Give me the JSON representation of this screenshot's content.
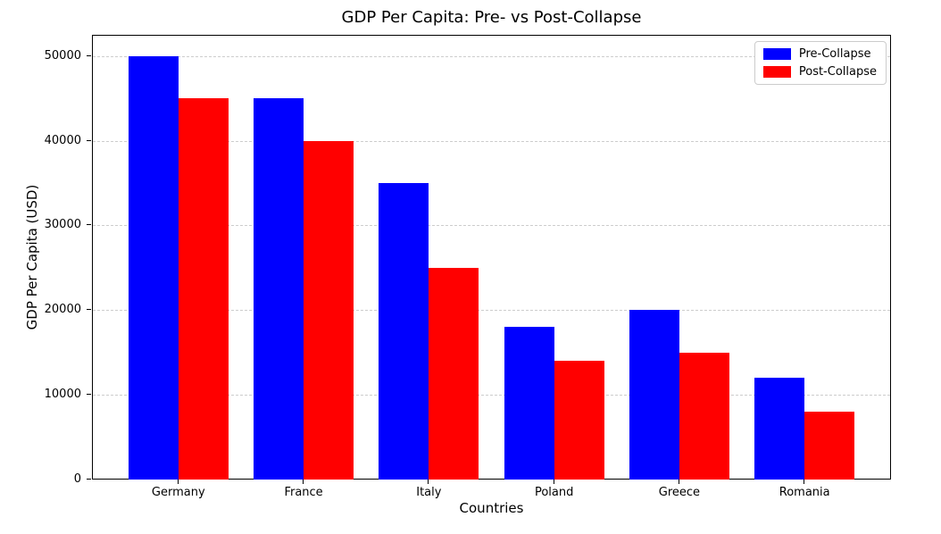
{
  "title": "GDP Per Capita: Pre- vs Post-Collapse",
  "chart_data": {
    "type": "bar",
    "title": "GDP Per Capita: Pre- vs Post-Collapse",
    "xlabel": "Countries",
    "ylabel": "GDP Per Capita (USD)",
    "categories": [
      "Germany",
      "France",
      "Italy",
      "Poland",
      "Greece",
      "Romania"
    ],
    "series": [
      {
        "name": "Pre-Collapse",
        "color": "#0000ff",
        "values": [
          50000,
          45000,
          35000,
          18000,
          20000,
          12000
        ]
      },
      {
        "name": "Post-Collapse",
        "color": "#ff0000",
        "values": [
          45000,
          40000,
          25000,
          14000,
          15000,
          8000
        ]
      }
    ],
    "yticks": [
      0,
      10000,
      20000,
      30000,
      40000,
      50000
    ],
    "ylim": [
      0,
      52500
    ],
    "xlim": [
      -0.69,
      5.69
    ],
    "bar_width": 0.4,
    "grid": "y-dashed",
    "grid_color": "#cdcdcd",
    "legend_position": "upper-right"
  }
}
